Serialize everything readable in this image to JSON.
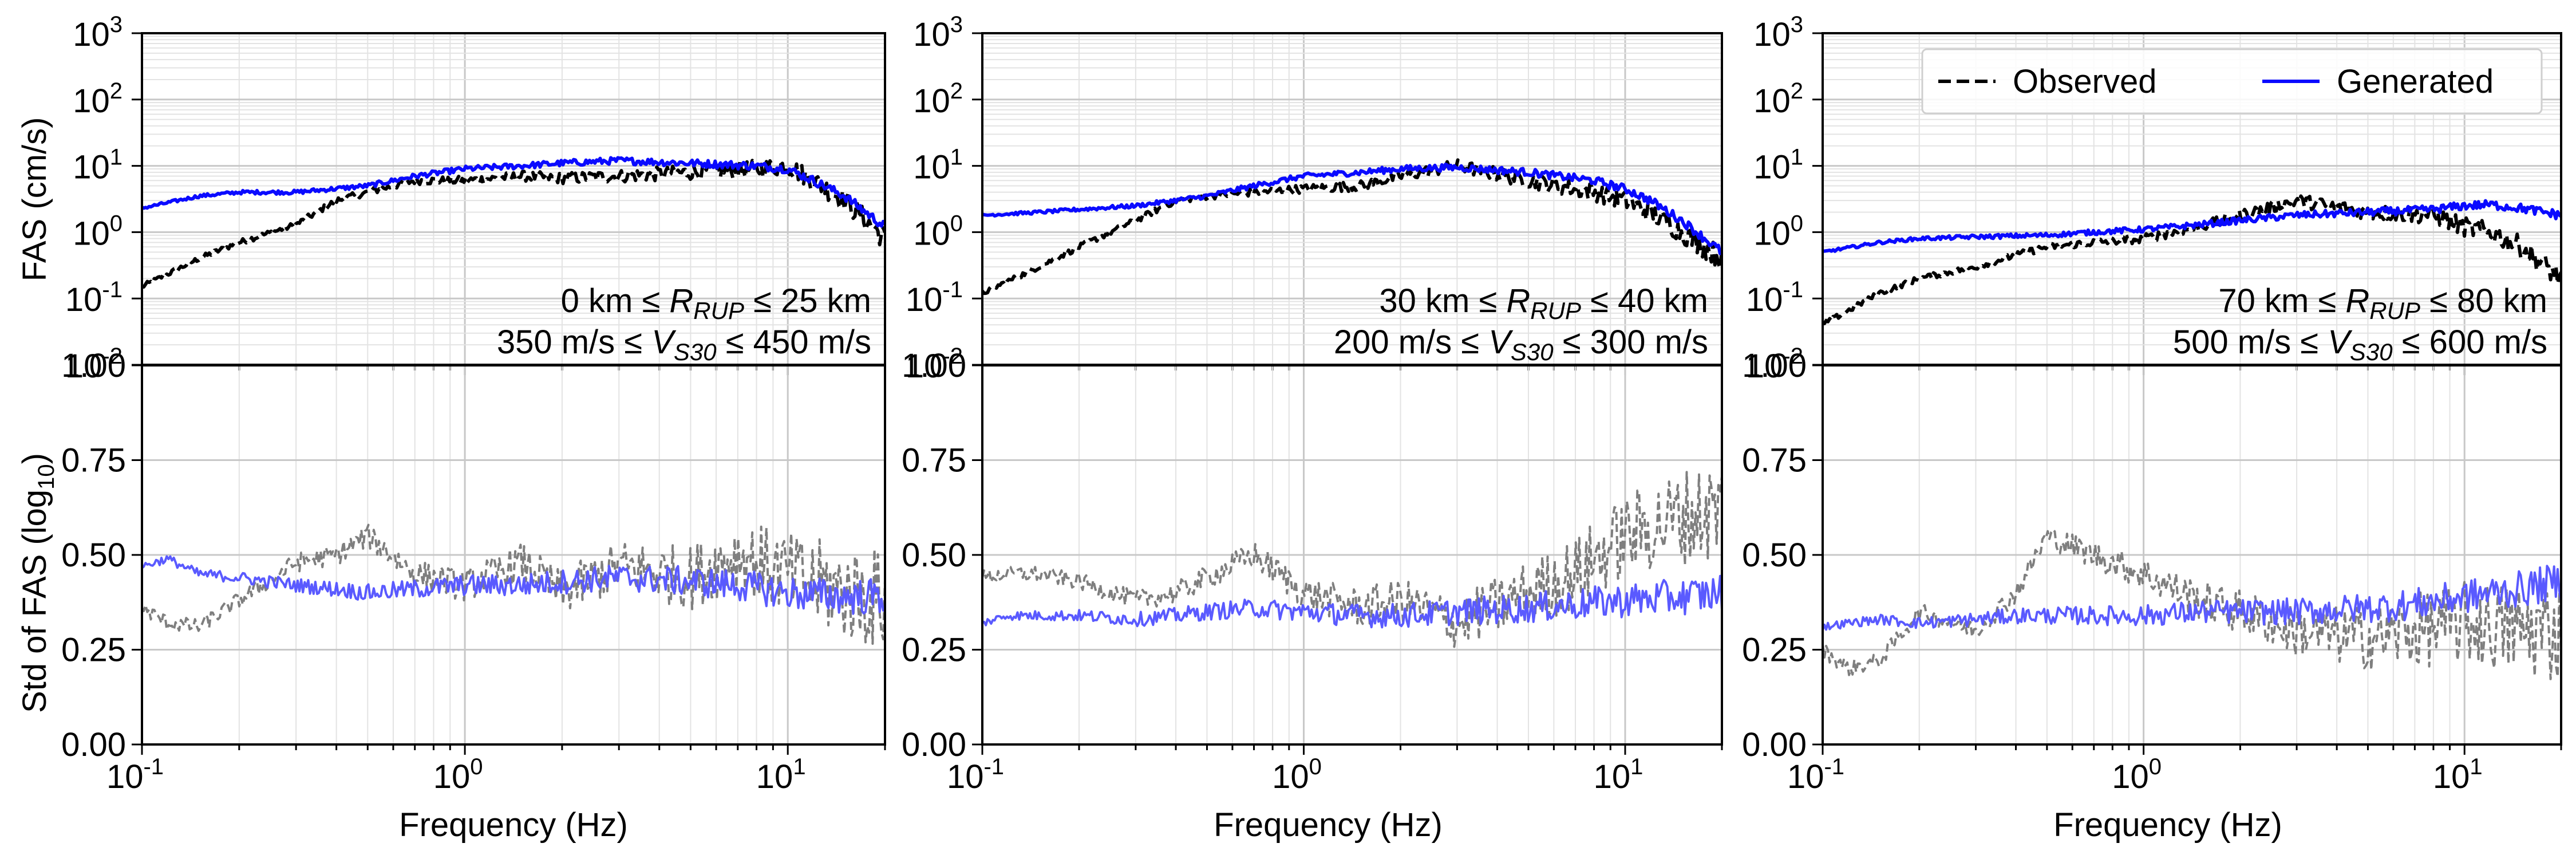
{
  "figure": {
    "ylabel_top": "FAS (cm/s)",
    "ylabel_bottom": "Std of FAS (log",
    "ylabel_bottom_sub": "10",
    "ylabel_bottom_end": ")",
    "xlabel": "Frequency (Hz)"
  },
  "chart_data": [
    {
      "type": "line",
      "title": "",
      "xscale": "log",
      "yscale": "log",
      "xlim": [
        0.1,
        20
      ],
      "ylim": [
        0.01,
        1000
      ],
      "ylabel": "FAS (cm/s)",
      "xlabel": "",
      "annotation_line1": "0 km ≤ R_RUP ≤ 25 km",
      "annotation_line2": "350 m/s ≤ V_S30 ≤ 450 m/s",
      "series": [
        {
          "name": "Observed",
          "color": "#000000",
          "style": "dashed",
          "x": [
            0.1,
            0.15,
            0.2,
            0.3,
            0.4,
            0.5,
            0.7,
            1,
            1.5,
            2,
            3,
            5,
            8,
            10,
            12,
            15,
            20
          ],
          "y": [
            0.15,
            0.4,
            0.7,
            1.3,
            3,
            4,
            6,
            6,
            7,
            6.5,
            7,
            8,
            9,
            10,
            6,
            3,
            0.8
          ]
        },
        {
          "name": "Generated",
          "color": "#0a0aff",
          "style": "solid",
          "x": [
            0.1,
            0.15,
            0.2,
            0.3,
            0.5,
            0.7,
            1,
            1.5,
            2,
            3,
            5,
            8,
            10,
            12,
            15,
            20
          ],
          "y": [
            2.3,
            3.5,
            4,
            4,
            5,
            7,
            9,
            10,
            11,
            12,
            11,
            10,
            9,
            6,
            3.5,
            1.2
          ]
        }
      ]
    },
    {
      "type": "line",
      "title": "",
      "xscale": "log",
      "yscale": "log",
      "xlim": [
        0.1,
        20
      ],
      "ylim": [
        0.01,
        1000
      ],
      "annotation_line1": "30 km ≤ R_RUP ≤ 40 km",
      "annotation_line2": "200 m/s ≤ V_S30 ≤ 300 m/s",
      "series": [
        {
          "name": "Observed",
          "color": "#000000",
          "style": "dashed",
          "x": [
            0.1,
            0.15,
            0.2,
            0.3,
            0.4,
            0.5,
            0.7,
            1,
            1.5,
            2,
            3,
            5,
            8,
            10,
            12,
            15,
            20
          ],
          "y": [
            0.12,
            0.3,
            0.6,
            1.5,
            3,
            3.5,
            4,
            4.5,
            5,
            7,
            10,
            6,
            4,
            3,
            2,
            1,
            0.4
          ]
        },
        {
          "name": "Generated",
          "color": "#0a0aff",
          "style": "solid",
          "x": [
            0.1,
            0.15,
            0.2,
            0.3,
            0.5,
            0.7,
            1,
            1.5,
            2,
            3,
            5,
            8,
            10,
            12,
            15,
            20
          ],
          "y": [
            1.8,
            2,
            2.2,
            2.5,
            3.5,
            5,
            7,
            8,
            9,
            9.5,
            8,
            6,
            4.5,
            3,
            1.5,
            0.5
          ]
        }
      ]
    },
    {
      "type": "line",
      "title": "",
      "xscale": "log",
      "yscale": "log",
      "xlim": [
        0.1,
        20
      ],
      "ylim": [
        0.01,
        1000
      ],
      "annotation_line1": "70 km ≤ R_RUP ≤ 80 km",
      "annotation_line2": "500 m/s ≤ V_S30 ≤ 600 m/s",
      "legend": {
        "placement": "top-right",
        "entries": [
          "Observed",
          "Generated"
        ]
      },
      "series": [
        {
          "name": "Observed",
          "color": "#000000",
          "style": "dashed",
          "x": [
            0.1,
            0.15,
            0.2,
            0.3,
            0.4,
            0.5,
            0.7,
            1,
            1.5,
            2,
            3,
            5,
            8,
            10,
            12,
            15,
            20
          ],
          "y": [
            0.04,
            0.12,
            0.2,
            0.3,
            0.45,
            0.6,
            0.7,
            0.8,
            1.2,
            1.8,
            3,
            2,
            1.8,
            1.2,
            1,
            0.6,
            0.2
          ]
        },
        {
          "name": "Generated",
          "color": "#0a0aff",
          "style": "solid",
          "x": [
            0.1,
            0.15,
            0.2,
            0.3,
            0.5,
            0.7,
            1,
            1.5,
            2,
            3,
            5,
            8,
            10,
            12,
            15,
            20
          ],
          "y": [
            0.5,
            0.7,
            0.8,
            0.85,
            0.9,
            1,
            1.1,
            1.3,
            1.5,
            1.8,
            2,
            2.2,
            2.5,
            2.6,
            2.3,
            1.8
          ]
        }
      ]
    },
    {
      "type": "line",
      "xscale": "log",
      "yscale": "linear",
      "xlim": [
        0.1,
        20
      ],
      "ylim": [
        0,
        1
      ],
      "ylabel": "Std of FAS (log10)",
      "xlabel": "Frequency (Hz)",
      "series": [
        {
          "name": "Observed",
          "color": "#7f7f7f",
          "style": "dashed",
          "x": [
            0.1,
            0.12,
            0.15,
            0.2,
            0.3,
            0.4,
            0.5,
            0.7,
            1,
            1.5,
            2,
            3,
            5,
            7,
            10,
            15,
            20
          ],
          "y": [
            0.36,
            0.32,
            0.31,
            0.38,
            0.48,
            0.5,
            0.55,
            0.45,
            0.42,
            0.48,
            0.4,
            0.47,
            0.44,
            0.5,
            0.45,
            0.4,
            0.38
          ]
        },
        {
          "name": "Generated",
          "color": "#5a5aff",
          "style": "solid",
          "x": [
            0.1,
            0.12,
            0.15,
            0.2,
            0.3,
            0.4,
            0.5,
            0.7,
            1,
            1.5,
            2,
            3,
            5,
            7,
            10,
            15,
            20
          ],
          "y": [
            0.47,
            0.49,
            0.45,
            0.44,
            0.42,
            0.41,
            0.4,
            0.41,
            0.42,
            0.42,
            0.43,
            0.44,
            0.43,
            0.42,
            0.4,
            0.39,
            0.39
          ]
        }
      ]
    },
    {
      "type": "line",
      "xscale": "log",
      "yscale": "linear",
      "xlim": [
        0.1,
        20
      ],
      "ylim": [
        0,
        1
      ],
      "xlabel": "Frequency (Hz)",
      "series": [
        {
          "name": "Observed",
          "color": "#7f7f7f",
          "style": "dashed",
          "x": [
            0.1,
            0.12,
            0.15,
            0.2,
            0.3,
            0.4,
            0.5,
            0.7,
            1,
            1.5,
            2,
            3,
            5,
            7,
            10,
            15,
            20
          ],
          "y": [
            0.44,
            0.45,
            0.45,
            0.43,
            0.38,
            0.4,
            0.44,
            0.5,
            0.4,
            0.36,
            0.38,
            0.32,
            0.4,
            0.45,
            0.55,
            0.6,
            0.62
          ]
        },
        {
          "name": "Generated",
          "color": "#5a5aff",
          "style": "solid",
          "x": [
            0.1,
            0.12,
            0.15,
            0.2,
            0.3,
            0.4,
            0.5,
            0.7,
            1,
            1.5,
            2,
            3,
            5,
            7,
            10,
            15,
            20
          ],
          "y": [
            0.32,
            0.34,
            0.34,
            0.34,
            0.33,
            0.34,
            0.35,
            0.36,
            0.35,
            0.34,
            0.34,
            0.35,
            0.36,
            0.37,
            0.38,
            0.39,
            0.4
          ]
        }
      ]
    },
    {
      "type": "line",
      "xscale": "log",
      "yscale": "linear",
      "xlim": [
        0.1,
        20
      ],
      "ylim": [
        0,
        1
      ],
      "xlabel": "Frequency (Hz)",
      "series": [
        {
          "name": "Observed",
          "color": "#7f7f7f",
          "style": "dashed",
          "x": [
            0.1,
            0.12,
            0.15,
            0.2,
            0.3,
            0.4,
            0.5,
            0.7,
            1,
            1.5,
            2,
            3,
            5,
            7,
            10,
            15,
            20
          ],
          "y": [
            0.25,
            0.2,
            0.22,
            0.35,
            0.3,
            0.4,
            0.55,
            0.5,
            0.45,
            0.38,
            0.35,
            0.3,
            0.28,
            0.3,
            0.32,
            0.3,
            0.3
          ]
        },
        {
          "name": "Generated",
          "color": "#5a5aff",
          "style": "solid",
          "x": [
            0.1,
            0.12,
            0.15,
            0.2,
            0.3,
            0.4,
            0.5,
            0.7,
            1,
            1.5,
            2,
            3,
            5,
            7,
            10,
            15,
            20
          ],
          "y": [
            0.31,
            0.32,
            0.33,
            0.32,
            0.33,
            0.34,
            0.34,
            0.34,
            0.34,
            0.35,
            0.35,
            0.35,
            0.36,
            0.37,
            0.39,
            0.41,
            0.43
          ]
        }
      ]
    }
  ]
}
